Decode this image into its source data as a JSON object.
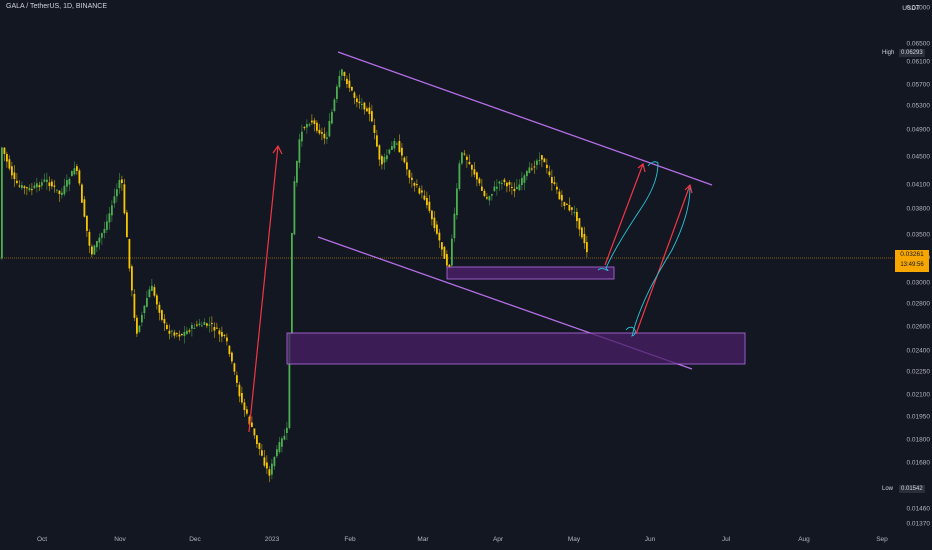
{
  "header": {
    "symbol": "GALA / TetherUS, 1D, BINANCE"
  },
  "price_axis": {
    "currency": "USDT",
    "ticks": [
      "0.07000",
      "0.06500",
      "0.06100",
      "0.05700",
      "0.05300",
      "0.04900",
      "0.04500",
      "0.04100",
      "0.03800",
      "0.03500",
      "0.03300",
      "0.03000",
      "0.02800",
      "0.02600",
      "0.02400",
      "0.02250",
      "0.02100",
      "0.01950",
      "0.01800",
      "0.01680",
      "0.01460",
      "0.01370"
    ],
    "high_label": "High",
    "high_value": "0.06293",
    "low_label": "Low",
    "low_value": "0.01542",
    "last_price": "0.03261",
    "countdown": "13:49:56"
  },
  "time_axis": {
    "ticks": [
      "Oct",
      "Nov",
      "Dec",
      "2023",
      "Feb",
      "Mar",
      "Apr",
      "May",
      "Jun",
      "Jul",
      "Aug",
      "Sep"
    ]
  },
  "colors": {
    "background": "#131722",
    "up": "#4caf50",
    "down": "#f7c600",
    "trendline": "#b46ee6",
    "zone_fill": "#4a1f66",
    "arrow": "#f23645",
    "path": "#26c6da",
    "price_line": "#f7a600"
  }
}
